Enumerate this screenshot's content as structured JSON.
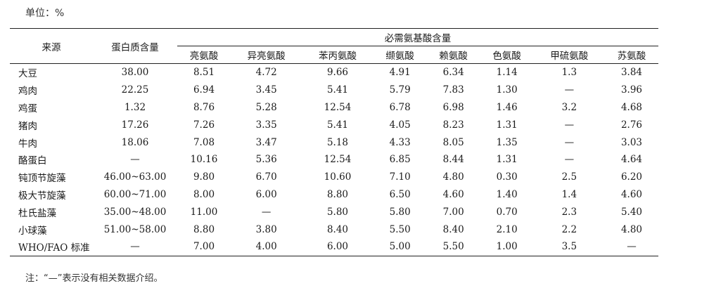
{
  "unit_label": "单位：%",
  "table": {
    "col_source": "来源",
    "col_protein": "蛋白质含量",
    "group_header": "必需氨基酸含量",
    "amino_acids": [
      "亮氨酸",
      "异亮氨酸",
      "苯丙氨酸",
      "缬氨酸",
      "赖氨酸",
      "色氨酸",
      "甲硫氨酸",
      "苏氨酸"
    ],
    "rows": [
      {
        "source": "大豆",
        "protein": "38.00",
        "values": [
          "8.51",
          "4.72",
          "9.66",
          "4.91",
          "6.34",
          "1.14",
          "1.3",
          "3.84"
        ]
      },
      {
        "source": "鸡肉",
        "protein": "22.25",
        "values": [
          "6.94",
          "3.45",
          "5.41",
          "5.79",
          "7.83",
          "1.30",
          "—",
          "3.96"
        ]
      },
      {
        "source": "鸡蛋",
        "protein": "1.32",
        "values": [
          "8.76",
          "5.28",
          "12.54",
          "6.78",
          "6.98",
          "1.46",
          "3.2",
          "4.68"
        ]
      },
      {
        "source": "猪肉",
        "protein": "17.26",
        "values": [
          "7.26",
          "3.35",
          "5.41",
          "4.05",
          "8.23",
          "1.31",
          "—",
          "2.76"
        ]
      },
      {
        "source": "牛肉",
        "protein": "18.06",
        "values": [
          "7.08",
          "3.47",
          "5.18",
          "4.33",
          "8.05",
          "1.35",
          "—",
          "3.03"
        ]
      },
      {
        "source": "酪蛋白",
        "protein": "—",
        "values": [
          "10.16",
          "5.36",
          "12.54",
          "6.85",
          "8.44",
          "1.31",
          "—",
          "4.64"
        ]
      },
      {
        "source": "钝顶节旋藻",
        "protein": "46.00~63.00",
        "values": [
          "9.80",
          "6.70",
          "10.60",
          "7.10",
          "4.80",
          "0.30",
          "2.5",
          "6.20"
        ]
      },
      {
        "source": "极大节旋藻",
        "protein": "60.00~71.00",
        "values": [
          "8.00",
          "6.00",
          "8.80",
          "6.50",
          "4.60",
          "1.40",
          "1.4",
          "4.60"
        ]
      },
      {
        "source": "杜氏盐藻",
        "protein": "35.00~48.00",
        "values": [
          "11.00",
          "—",
          "5.80",
          "5.80",
          "7.00",
          "0.70",
          "2.3",
          "5.40"
        ]
      },
      {
        "source": "小球藻",
        "protein": "51.00~58.00",
        "values": [
          "8.80",
          "3.80",
          "8.40",
          "5.50",
          "8.40",
          "2.10",
          "2.2",
          "4.80"
        ]
      },
      {
        "source": "WHO/FAO 标准",
        "protein": "—",
        "values": [
          "7.00",
          "4.00",
          "6.00",
          "5.00",
          "5.50",
          "1.00",
          "3.5",
          "—"
        ]
      }
    ]
  },
  "note": "注：“—”表示没有相关数据介绍。"
}
